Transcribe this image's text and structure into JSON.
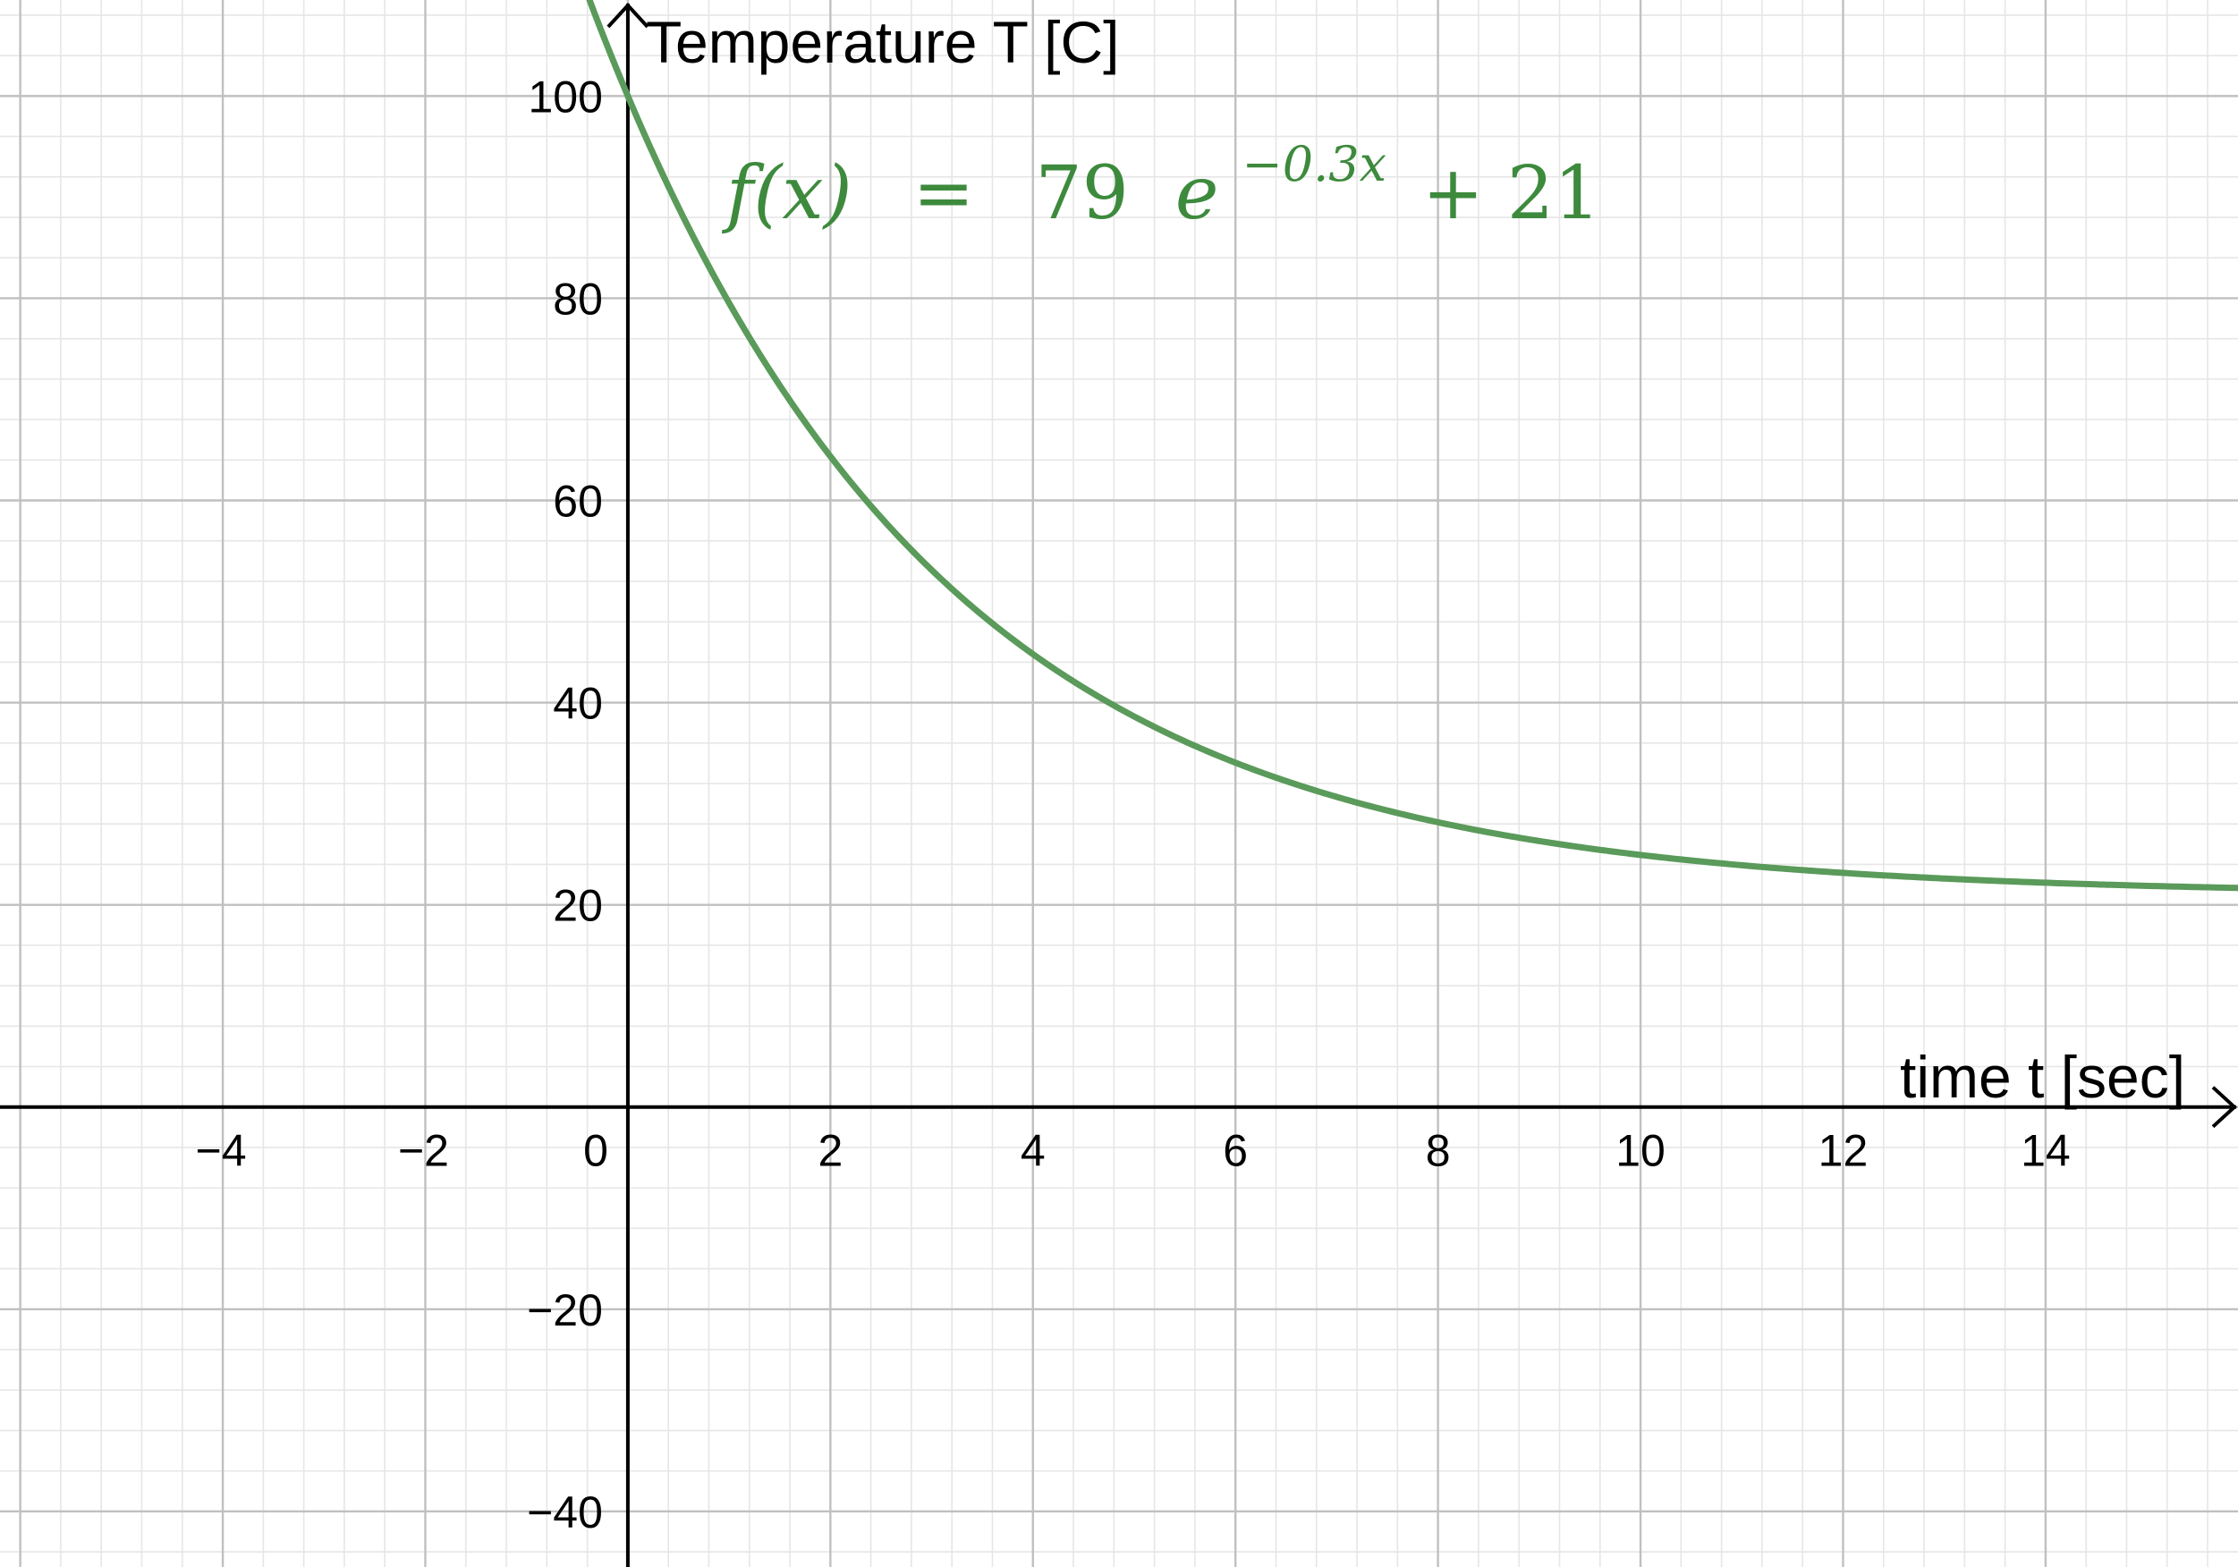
{
  "chart_data": {
    "type": "line",
    "xlabel": "time t [sec]",
    "ylabel": "Temperature T [C]",
    "xlim": [
      -6.2,
      15.9
    ],
    "ylim": [
      -45.5,
      109.5
    ],
    "x_ticks": [
      {
        "value": -4,
        "label": "−4"
      },
      {
        "value": -2,
        "label": "−2"
      },
      {
        "value": 0,
        "label": "0"
      },
      {
        "value": 2,
        "label": "2"
      },
      {
        "value": 4,
        "label": "4"
      },
      {
        "value": 6,
        "label": "6"
      },
      {
        "value": 8,
        "label": "8"
      },
      {
        "value": 10,
        "label": "10"
      },
      {
        "value": 12,
        "label": "12"
      },
      {
        "value": 14,
        "label": "14"
      }
    ],
    "y_ticks": [
      {
        "value": -40,
        "label": "−40"
      },
      {
        "value": -20,
        "label": "−20"
      },
      {
        "value": 20,
        "label": "20"
      },
      {
        "value": 40,
        "label": "40"
      },
      {
        "value": 60,
        "label": "60"
      },
      {
        "value": 80,
        "label": "80"
      },
      {
        "value": 100,
        "label": "100"
      }
    ],
    "major_x_step": 2,
    "major_y_step": 20,
    "minor_divisions": 5,
    "grid": true,
    "series": [
      {
        "amplitude": 79,
        "rate": -0.3,
        "offset": 21,
        "color": "#5a9a5a",
        "formula": {
          "lhs": "f(x)",
          "equals": "=",
          "coef": "79",
          "base": "e",
          "exponent": "−0.3x",
          "tail": "+ 21"
        }
      }
    ]
  }
}
